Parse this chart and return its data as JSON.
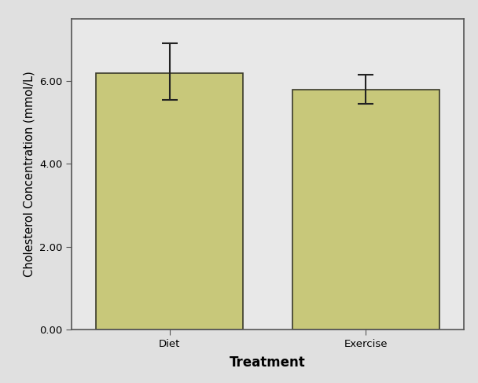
{
  "categories": [
    "Diet",
    "Exercise"
  ],
  "values": [
    6.2,
    5.8
  ],
  "errors_upper": [
    0.72,
    0.35
  ],
  "errors_lower": [
    0.65,
    0.35
  ],
  "bar_color": "#c8c87a",
  "bar_edge_color": "#3a3a2a",
  "error_color": "#222222",
  "background_color": "#e8e8e8",
  "plot_bg_color": "#e8e8e8",
  "xlabel": "Treatment",
  "ylabel": "Cholesterol Concentration (mmol/L)",
  "ylim": [
    0,
    7.5
  ],
  "yticks": [
    0.0,
    2.0,
    4.0,
    6.0
  ],
  "ytick_labels": [
    "0.00",
    "2.00",
    "4.00",
    "6.00"
  ],
  "bar_width": 0.75,
  "capsize": 7,
  "xlabel_fontsize": 12,
  "ylabel_fontsize": 10.5,
  "tick_fontsize": 9.5,
  "xlabel_fontweight": "bold",
  "figure_bg_color": "#e0e0e0",
  "spine_color": "#555555",
  "bar_gap": 0.5
}
